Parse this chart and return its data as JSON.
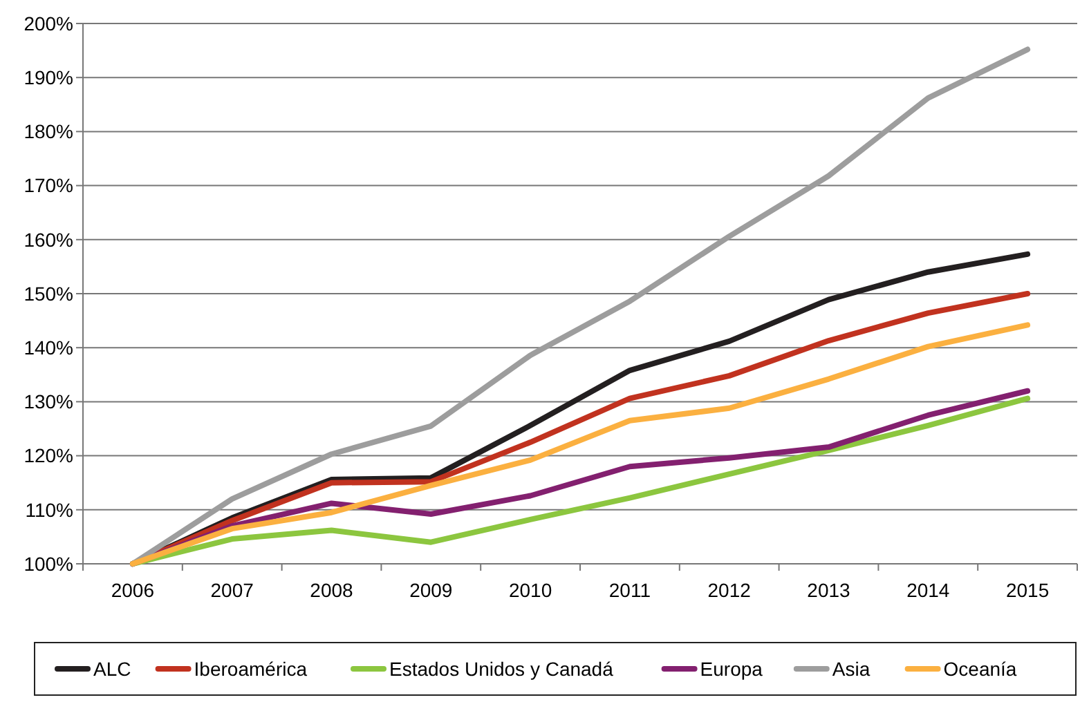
{
  "chart_data": {
    "type": "line",
    "categories": [
      "2006",
      "2007",
      "2008",
      "2009",
      "2010",
      "2011",
      "2012",
      "2013",
      "2014",
      "2015"
    ],
    "ylim": [
      100,
      200
    ],
    "yticks": [
      {
        "value": 100,
        "label": "100%"
      },
      {
        "value": 110,
        "label": "110%"
      },
      {
        "value": 120,
        "label": "120%"
      },
      {
        "value": 130,
        "label": "130%"
      },
      {
        "value": 140,
        "label": "140%"
      },
      {
        "value": 150,
        "label": "150%"
      },
      {
        "value": 160,
        "label": "160%"
      },
      {
        "value": 170,
        "label": "170%"
      },
      {
        "value": 180,
        "label": "180%"
      },
      {
        "value": 190,
        "label": "190%"
      },
      {
        "value": 200,
        "label": "200%"
      }
    ],
    "grid": "y",
    "legend": "bottom",
    "marker": "none",
    "line_style": "solid",
    "series": [
      {
        "name": "ALC",
        "color": "#231f20",
        "values": [
          100,
          108.5,
          115.6,
          115.9,
          125.6,
          135.8,
          141.2,
          148.9,
          154,
          157.3
        ]
      },
      {
        "name": "Iberoamérica",
        "color": "#c1321f",
        "values": [
          100,
          108,
          115,
          115.2,
          122.5,
          130.6,
          134.8,
          141.3,
          146.4,
          150
        ]
      },
      {
        "name": "Estados Unidos y Canadá",
        "color": "#8cc63f",
        "values": [
          100,
          104.6,
          106.2,
          104,
          108.2,
          112.2,
          116.6,
          121,
          125.6,
          130.6
        ]
      },
      {
        "name": "Europa",
        "color": "#83206f",
        "values": [
          100,
          107,
          111.2,
          109.2,
          112.6,
          118,
          119.6,
          121.6,
          127.5,
          132
        ]
      },
      {
        "name": "Asia",
        "color": "#9d9d9d",
        "values": [
          100,
          112,
          120.3,
          125.5,
          138.6,
          148.6,
          160.6,
          171.8,
          186.2,
          195.2
        ]
      },
      {
        "name": "Oceanía",
        "color": "#fbb040",
        "values": [
          100,
          106.5,
          109.5,
          114.5,
          119.2,
          126.5,
          128.8,
          134.2,
          140.2,
          144.2
        ]
      }
    ]
  }
}
